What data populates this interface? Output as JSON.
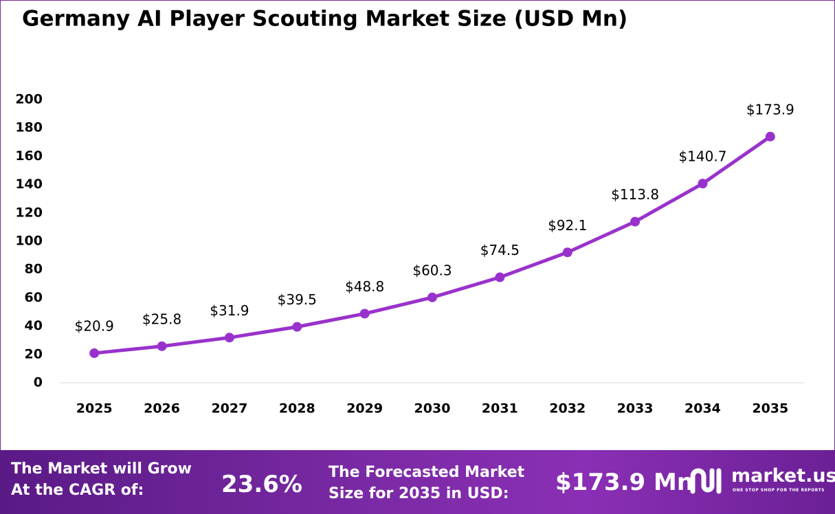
{
  "chart_data": {
    "type": "line",
    "title": "Germany AI Player Scouting Market Size (USD Mn)",
    "categories": [
      "2025",
      "2026",
      "2027",
      "2028",
      "2029",
      "2030",
      "2031",
      "2032",
      "2033",
      "2034",
      "2035"
    ],
    "series": [
      {
        "color": "#9932cc",
        "values": [
          20.9,
          25.8,
          31.9,
          39.5,
          48.8,
          60.3,
          74.5,
          92.1,
          113.8,
          140.7,
          173.9
        ],
        "value_labels": [
          "$20.9",
          "$25.8",
          "$31.9",
          "$39.5",
          "$48.8",
          "$60.3",
          "$74.5",
          "$92.1",
          "$113.8",
          "$140.7",
          "$173.9"
        ]
      }
    ],
    "ylim": [
      0,
      200
    ],
    "yticks": [
      0,
      20,
      40,
      60,
      80,
      100,
      120,
      140,
      160,
      180,
      200
    ],
    "grid": false
  },
  "footer": {
    "cagr_label": [
      "The Market will Grow",
      "At the CAGR of:"
    ],
    "cagr": "23.6%",
    "forecast_label": [
      "The Forecasted Market",
      "Size for 2035 in USD:"
    ],
    "forecast": "$173.9 Mn",
    "brand": "market.us",
    "tagline": "ONE STOP SHOP FOR THE REPORTS"
  }
}
